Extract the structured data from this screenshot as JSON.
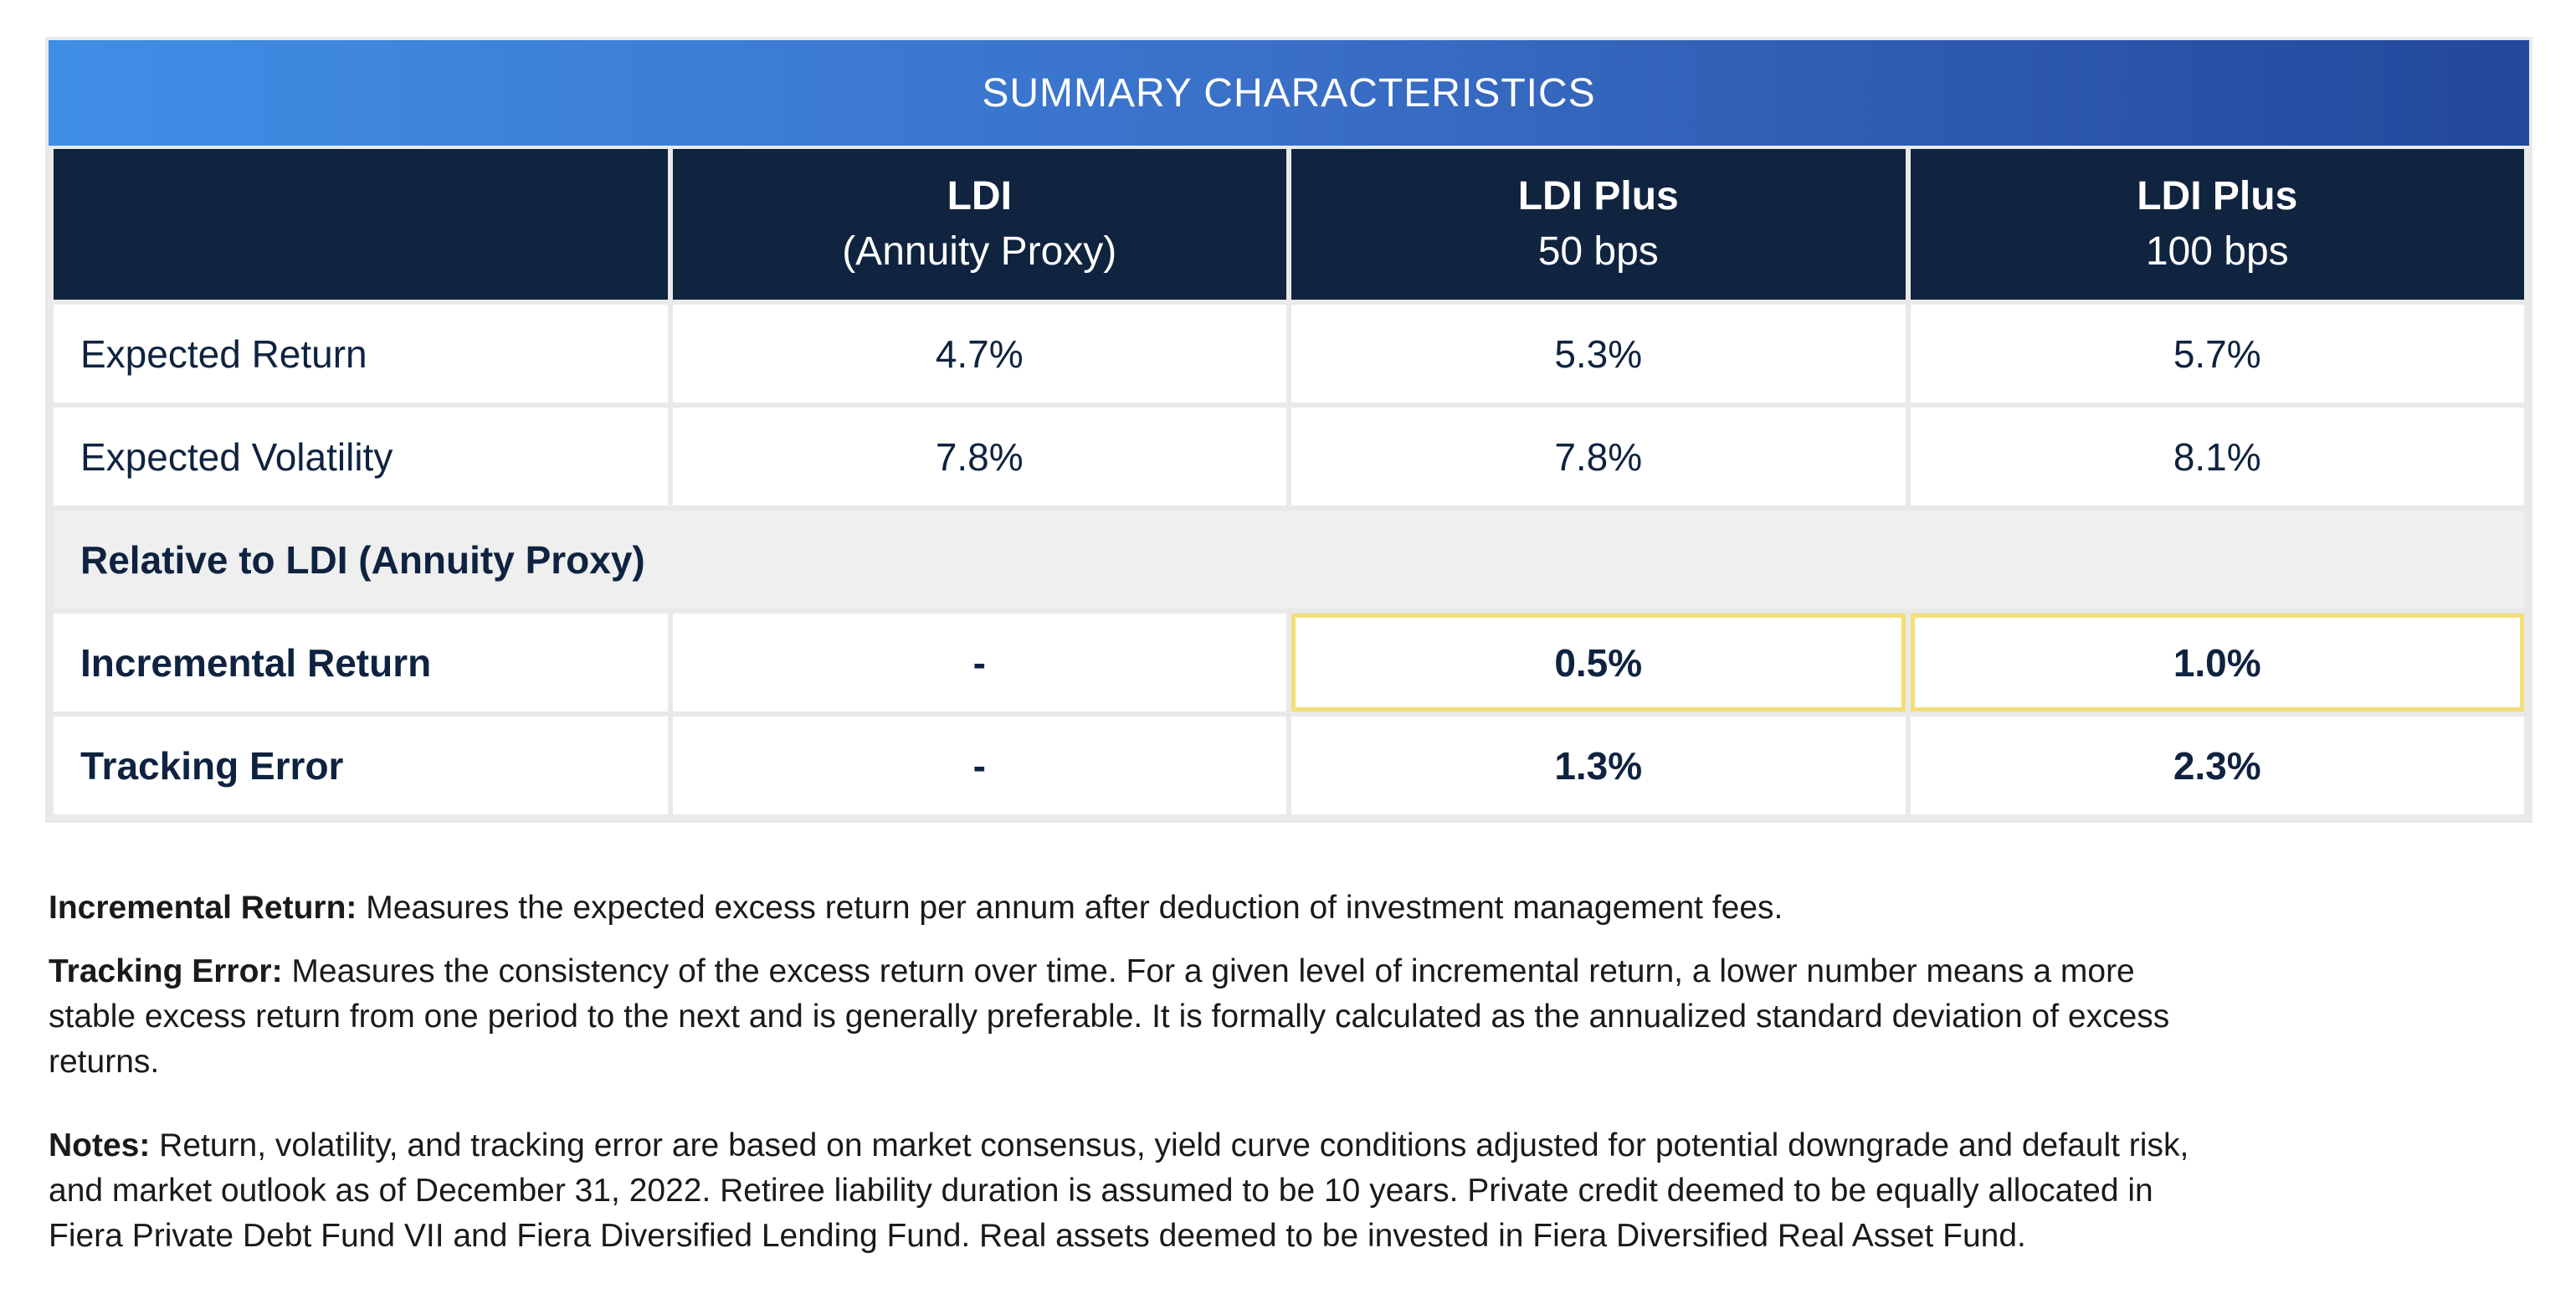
{
  "table": {
    "title": "SUMMARY CHARACTERISTICS",
    "columns": [
      {
        "line1": "",
        "line2": ""
      },
      {
        "line1": "LDI",
        "line2": "(Annuity Proxy)"
      },
      {
        "line1": "LDI Plus",
        "line2": "50 bps"
      },
      {
        "line1": "LDI Plus",
        "line2": "100 bps"
      }
    ],
    "rows": [
      {
        "label": "Expected Return",
        "values": [
          "4.7%",
          "5.3%",
          "5.7%"
        ]
      },
      {
        "label": "Expected Volatility",
        "values": [
          "7.8%",
          "7.8%",
          "8.1%"
        ]
      }
    ],
    "section_label": "Relative to LDI (Annuity Proxy)",
    "relative_rows": [
      {
        "label": "Incremental Return",
        "values": [
          "-",
          "0.5%",
          "1.0%"
        ]
      },
      {
        "label": "Tracking Error",
        "values": [
          "-",
          "1.3%",
          "2.3%"
        ]
      }
    ],
    "highlight_color": "#f2df78",
    "header_color": "#10233f",
    "banner_gradient": [
      "#3f8ee6",
      "#22489b"
    ]
  },
  "notes": {
    "incremental_label": "Incremental Return:",
    "incremental_text": " Measures the expected excess return per annum after deduction of investment management fees.",
    "tracking_label": "Tracking Error:",
    "tracking_text": " Measures the consistency of the excess return over time. For a given level of incremental return, a lower number means a more stable excess return from one period to the next and is generally preferable. It is formally calculated as the annualized standard deviation of excess returns.",
    "notes_label": "Notes:",
    "notes_text": " Return, volatility, and tracking error are based on market consensus, yield curve conditions adjusted for potential downgrade and default risk, and market outlook as of December 31, 2022. Retiree liability duration is assumed to be 10 years. Private credit deemed to be equally allocated in Fiera Private Debt Fund VII and Fiera Diversified Lending Fund. Real assets deemed to be invested in Fiera Diversified Real Asset Fund."
  }
}
